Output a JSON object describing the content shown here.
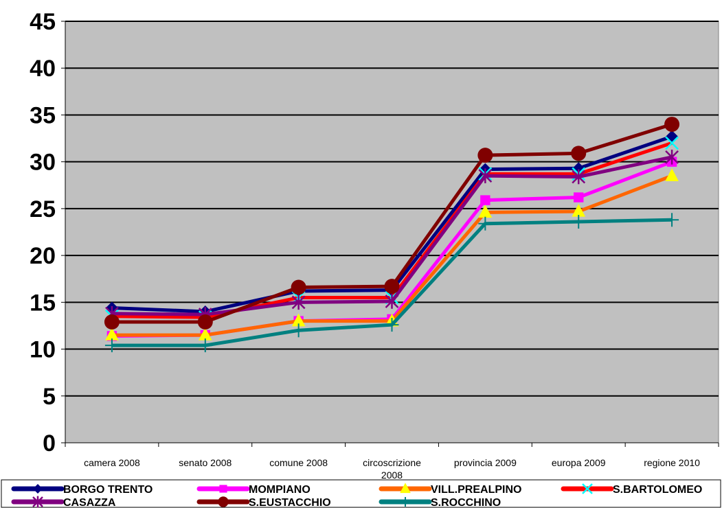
{
  "chart_data": {
    "type": "line",
    "categories": [
      "camera 2008",
      "senato 2008",
      "comune 2008",
      "circoscrizione 2008",
      "provincia 2009",
      "europa 2009",
      "regione 2010"
    ],
    "ylim": [
      0,
      45
    ],
    "yticks": [
      0,
      5,
      10,
      15,
      20,
      25,
      30,
      35,
      40,
      45
    ],
    "grid": "horizontal",
    "plot_background": "#c0c0c0",
    "legend_position": "bottom",
    "series": [
      {
        "name": "BORGO TRENTO",
        "color": "#000080",
        "marker": "diamond",
        "values": [
          14.4,
          14.0,
          16.2,
          16.3,
          29.2,
          29.3,
          32.7
        ]
      },
      {
        "name": "MOMPIANO",
        "color": "#ff00ff",
        "marker": "square",
        "values": [
          11.4,
          11.5,
          13.0,
          13.2,
          25.9,
          26.2,
          30.0
        ]
      },
      {
        "name": "VILL.PREALPINO",
        "color": "#ff6600",
        "marker": "triangle",
        "values": [
          11.5,
          11.5,
          13.0,
          13.0,
          24.6,
          24.7,
          28.5
        ]
      },
      {
        "name": "S.BARTOLOMEO",
        "color": "#ff0000",
        "marker": "x",
        "values": [
          13.5,
          13.4,
          15.5,
          15.5,
          28.7,
          28.7,
          32.0
        ]
      },
      {
        "name": "CASAZZA",
        "color": "#800080",
        "marker": "star",
        "values": [
          13.8,
          13.7,
          15.0,
          15.1,
          28.5,
          28.4,
          30.5
        ]
      },
      {
        "name": "S.EUSTACCHIO",
        "color": "#800000",
        "marker": "circle",
        "values": [
          12.9,
          12.9,
          16.6,
          16.7,
          30.7,
          30.9,
          34.0
        ]
      },
      {
        "name": "S.ROCCHINO",
        "color": "#008080",
        "marker": "plus",
        "values": [
          10.4,
          10.4,
          12.0,
          12.6,
          23.4,
          23.6,
          23.8
        ]
      }
    ]
  }
}
